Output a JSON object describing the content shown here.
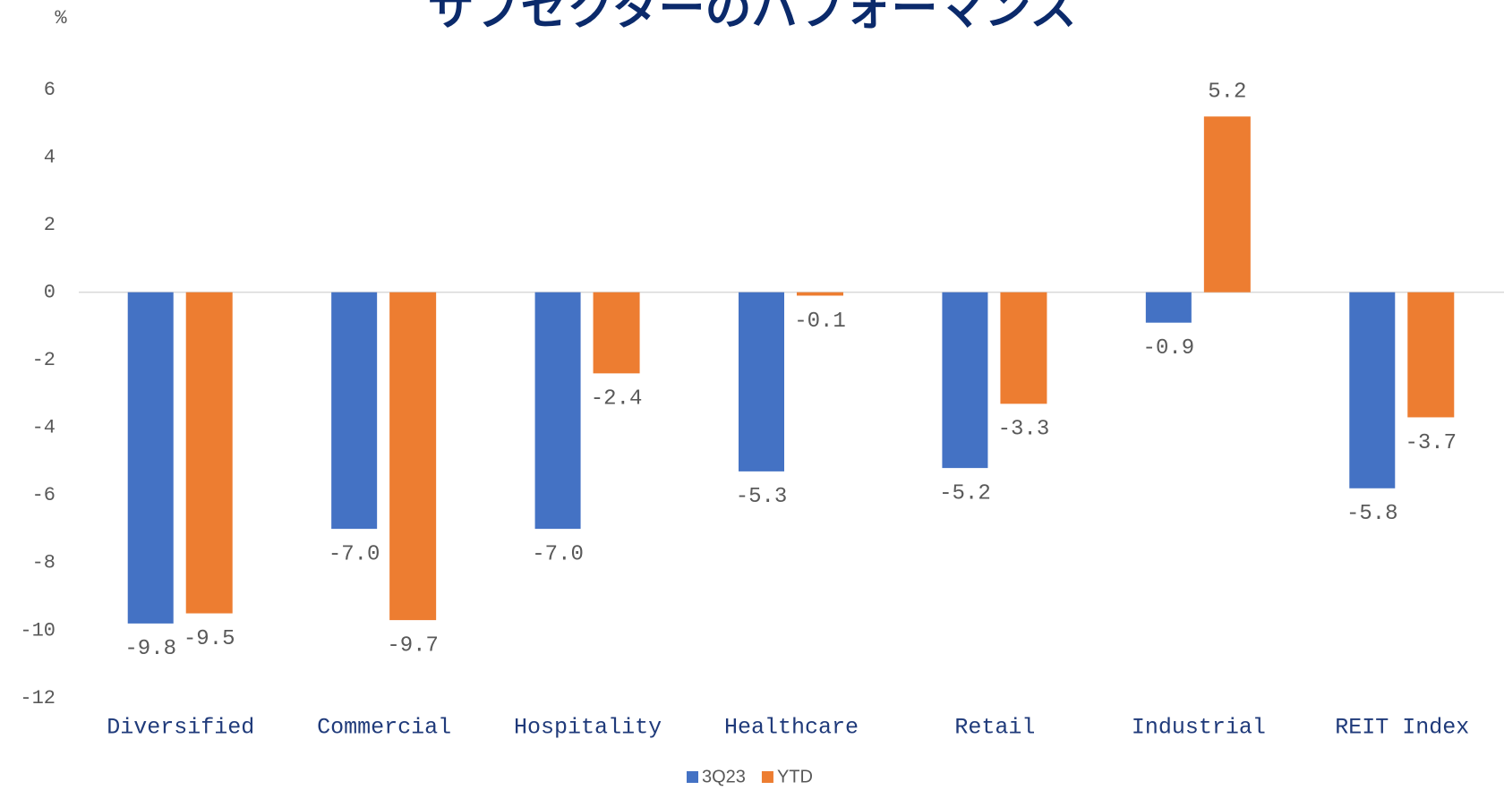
{
  "chart_data": {
    "type": "bar",
    "title": "サブセクターのパフォーマンス",
    "y_unit": "%",
    "categories": [
      "Diversified",
      "Commercial",
      "Hospitality",
      "Healthcare",
      "Retail",
      "Industrial",
      "REIT Index"
    ],
    "series": [
      {
        "name": "3Q23",
        "color": "#4472c4",
        "values": [
          -9.8,
          -7.0,
          -7.0,
          -5.3,
          -5.2,
          -0.9,
          -5.8
        ],
        "value_labels": [
          "-9.8",
          "-7.0",
          "-7.0",
          "-5.3",
          "-5.2",
          "-0.9",
          "-5.8"
        ]
      },
      {
        "name": "YTD",
        "color": "#ed7d31",
        "values": [
          -9.5,
          -9.7,
          -2.4,
          -0.1,
          -3.3,
          5.2,
          -3.7
        ],
        "value_labels": [
          "-9.5",
          "-9.7",
          "-2.4",
          "-0.1",
          "-3.3",
          "5.2",
          "-3.7"
        ]
      }
    ],
    "ylim": [
      -12,
      6
    ],
    "yticks": [
      6,
      4,
      2,
      0,
      -2,
      -4,
      -6,
      -8,
      -10,
      -12
    ],
    "grid": false,
    "legend": "bottom"
  }
}
